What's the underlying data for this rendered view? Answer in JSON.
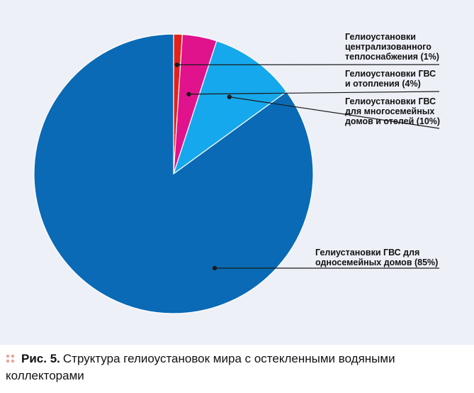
{
  "colors": {
    "panel_bg": "#eef0f8",
    "caption_dots": "#e8a39a",
    "leader": "#1a1a1a"
  },
  "caption": {
    "figure_label": "Рис. 5.",
    "text": "Структура гелиоустановок мира с остекленными водяными коллекторами"
  },
  "chart_data": {
    "type": "pie",
    "title": "",
    "start_angle_deg": 0,
    "direction": "clockwise",
    "slices": [
      {
        "label": "Гелиоустановки\nцентрализованного\nтеплоснабжения (1%)",
        "value": 1,
        "color": "#e3231b"
      },
      {
        "label": "Гелиоустановки ГВС\nи отопления (4%)",
        "value": 4,
        "color": "#e0138d"
      },
      {
        "label": "Гелиоустановки ГВС\nдля многосемейных\nдомов и отелей (10%)",
        "value": 10,
        "color": "#16a8ec"
      },
      {
        "label": "Гелиустановки ГВС для\nодносемейных домов (85%)",
        "value": 85,
        "color": "#0a6ab5"
      }
    ]
  }
}
